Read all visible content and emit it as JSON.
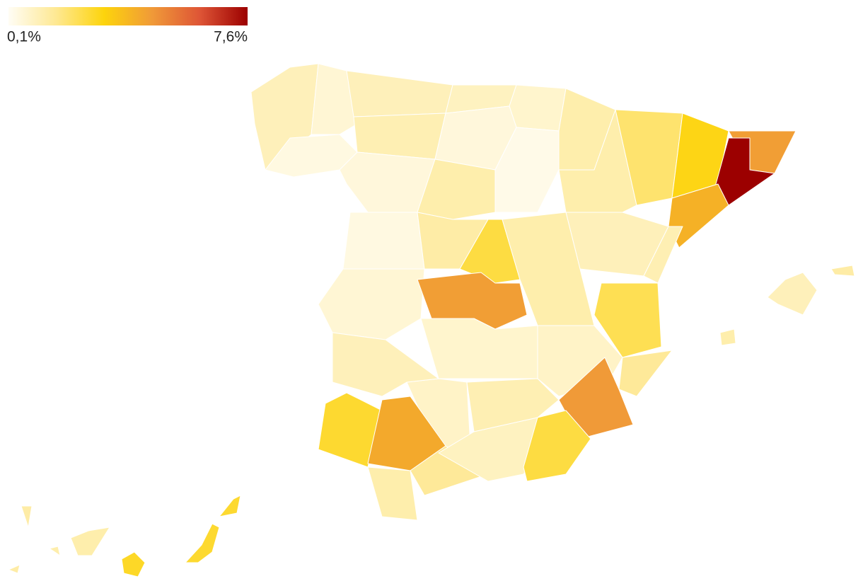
{
  "chart_data": {
    "type": "choropleth",
    "values": [
      1.0,
      0.4,
      0.6,
      1.0,
      0.9,
      0.7,
      1.2,
      1.1,
      0.5,
      0.5,
      1.2,
      0.3,
      1.2,
      2.0,
      3.0,
      4.5,
      7.6,
      4.0,
      1.0,
      0.4,
      1.3,
      2.5,
      1.2,
      1.1,
      2.3,
      0.6,
      4.5,
      0.7,
      0.8,
      1.5,
      4.6,
      0.8,
      1.1,
      1.0,
      2.7,
      4.2,
      1.2,
      1.5,
      0.9,
      2.5,
      1.0,
      1.3,
      1.2,
      2.7,
      2.7,
      2.8,
      1.2,
      1.3,
      1.2,
      1.3
    ],
    "colorbar": {
      "range": [
        0.1,
        7.6
      ],
      "ticks": [
        {
          "value": 0.1,
          "label": "0,1%"
        },
        {
          "value": 7.6,
          "label": "7,6%"
        }
      ],
      "colors": [
        "#fffdf5",
        "#fee892",
        "#fdd40c",
        "#f09a38",
        "#de5536",
        "#9c0000"
      ]
    }
  }
}
